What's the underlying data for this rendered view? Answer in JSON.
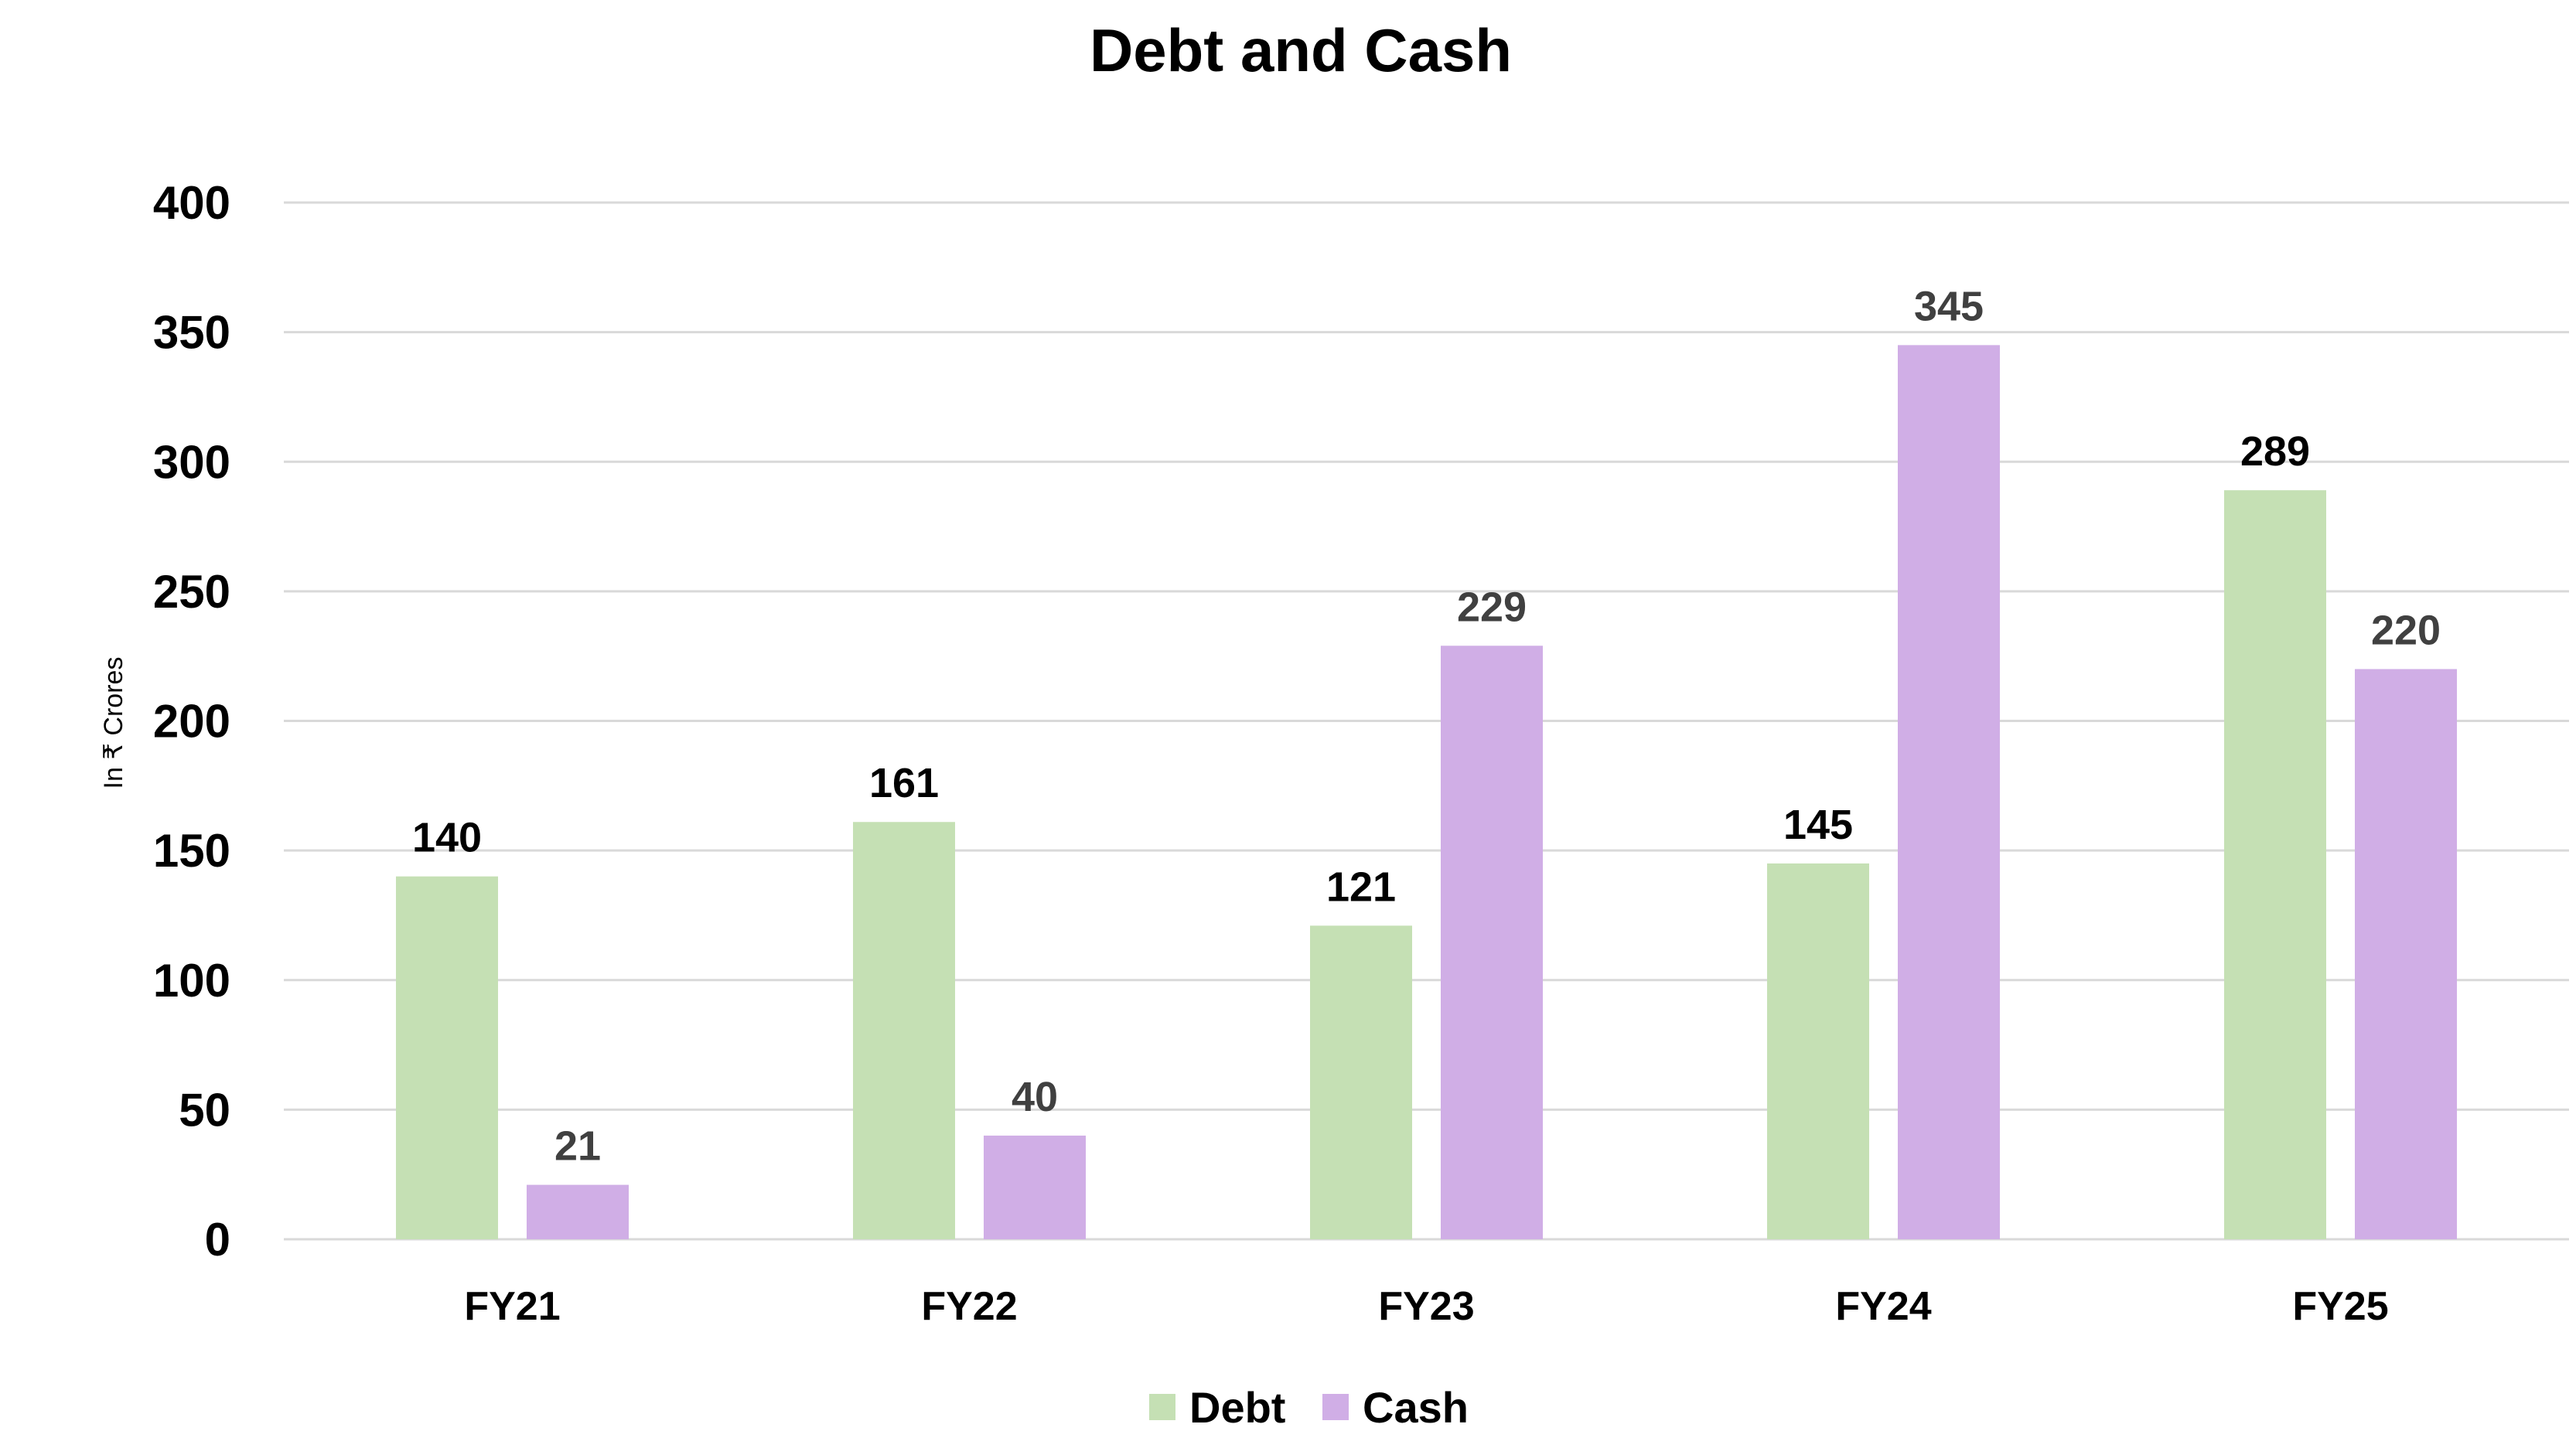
{
  "chart_data": {
    "type": "bar",
    "title": "Debt and Cash",
    "xlabel": "",
    "ylabel": "In ₹ Crores",
    "categories": [
      "FY21",
      "FY22",
      "FY23",
      "FY24",
      "FY25"
    ],
    "series": [
      {
        "name": "Debt",
        "color": "#c5e0b4",
        "label_color": "#000000",
        "values": [
          140,
          161,
          121,
          145,
          289
        ]
      },
      {
        "name": "Cash",
        "color": "#d0aee6",
        "label_color": "#404040",
        "values": [
          21,
          40,
          229,
          345,
          220
        ]
      }
    ],
    "ylim": [
      0,
      400
    ],
    "yticks": [
      0,
      50,
      100,
      150,
      200,
      250,
      300,
      350,
      400
    ],
    "grid": true,
    "legend": "bottom-center"
  }
}
